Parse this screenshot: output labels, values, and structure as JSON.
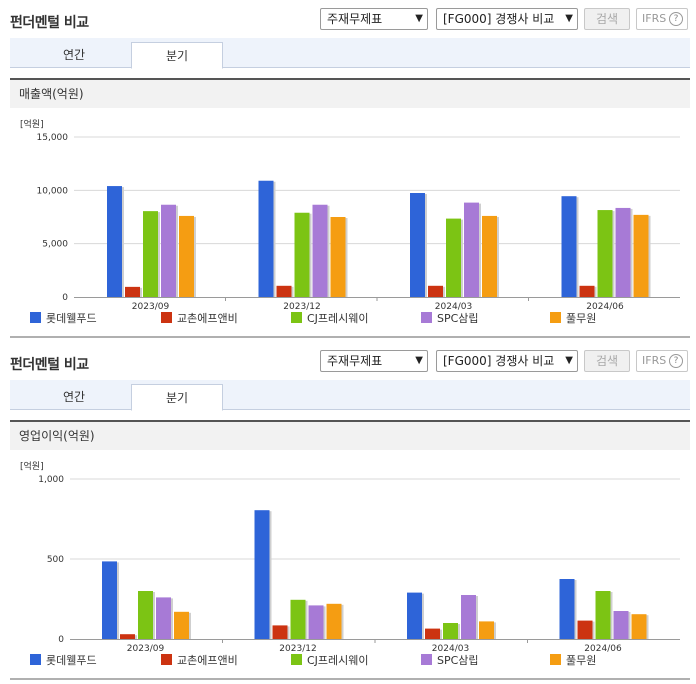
{
  "sections": [
    {
      "title": "펀더멘털 비교",
      "select_statement": "주재무제표",
      "select_compare": "[FG000] 경쟁사 비교",
      "search_label": "검색",
      "ifrs_label": "IFRS",
      "help_label": "?",
      "tab_annual": "연간",
      "tab_quarter": "분기",
      "metric_label": "매출액(억원)",
      "unit_label": "[억원]"
    },
    {
      "title": "펀더멘털 비교",
      "select_statement": "주재무제표",
      "select_compare": "[FG000] 경쟁사 비교",
      "search_label": "검색",
      "ifrs_label": "IFRS",
      "help_label": "?",
      "tab_annual": "연간",
      "tab_quarter": "분기",
      "metric_label": "영업이익(억원)",
      "unit_label": "[억원]"
    }
  ],
  "colors": {
    "series": [
      "#2e64d8",
      "#cc3311",
      "#7cc414",
      "#a77ad6",
      "#f59d12"
    ],
    "axis": "#9a9a9a",
    "grid": "#d8d8d8"
  },
  "chart_data": [
    {
      "type": "bar",
      "categories": [
        "2023/09",
        "2023/12",
        "2024/03",
        "2024/06"
      ],
      "series": [
        {
          "name": "롯데웰푸드",
          "values": [
            10400,
            10900,
            9750,
            9450
          ]
        },
        {
          "name": "교촌에프앤비",
          "values": [
            950,
            1050,
            1050,
            1050
          ]
        },
        {
          "name": "CJ프레시웨이",
          "values": [
            8050,
            7900,
            7350,
            8150
          ]
        },
        {
          "name": "SPC삼립",
          "values": [
            8650,
            8650,
            8850,
            8350
          ]
        },
        {
          "name": "풀무원",
          "values": [
            7600,
            7500,
            7600,
            7700
          ]
        }
      ],
      "yticks": [
        "15,000",
        "10,000",
        "5,000",
        "0"
      ],
      "ylim": [
        0,
        15000
      ],
      "grid": true,
      "legend": "bottom"
    },
    {
      "type": "bar",
      "categories": [
        "2023/09",
        "2023/12",
        "2024/03",
        "2024/06"
      ],
      "series": [
        {
          "name": "롯데웰푸드",
          "values": [
            485,
            805,
            290,
            375
          ]
        },
        {
          "name": "교촌에프앤비",
          "values": [
            30,
            85,
            65,
            115
          ]
        },
        {
          "name": "CJ프레시웨이",
          "values": [
            300,
            245,
            100,
            300
          ]
        },
        {
          "name": "SPC삼립",
          "values": [
            260,
            210,
            275,
            175
          ]
        },
        {
          "name": "풀무원",
          "values": [
            170,
            220,
            110,
            155
          ]
        }
      ],
      "yticks": [
        "1,000",
        "500",
        "0"
      ],
      "ylim": [
        0,
        1000
      ],
      "grid": true,
      "legend": "bottom"
    }
  ]
}
